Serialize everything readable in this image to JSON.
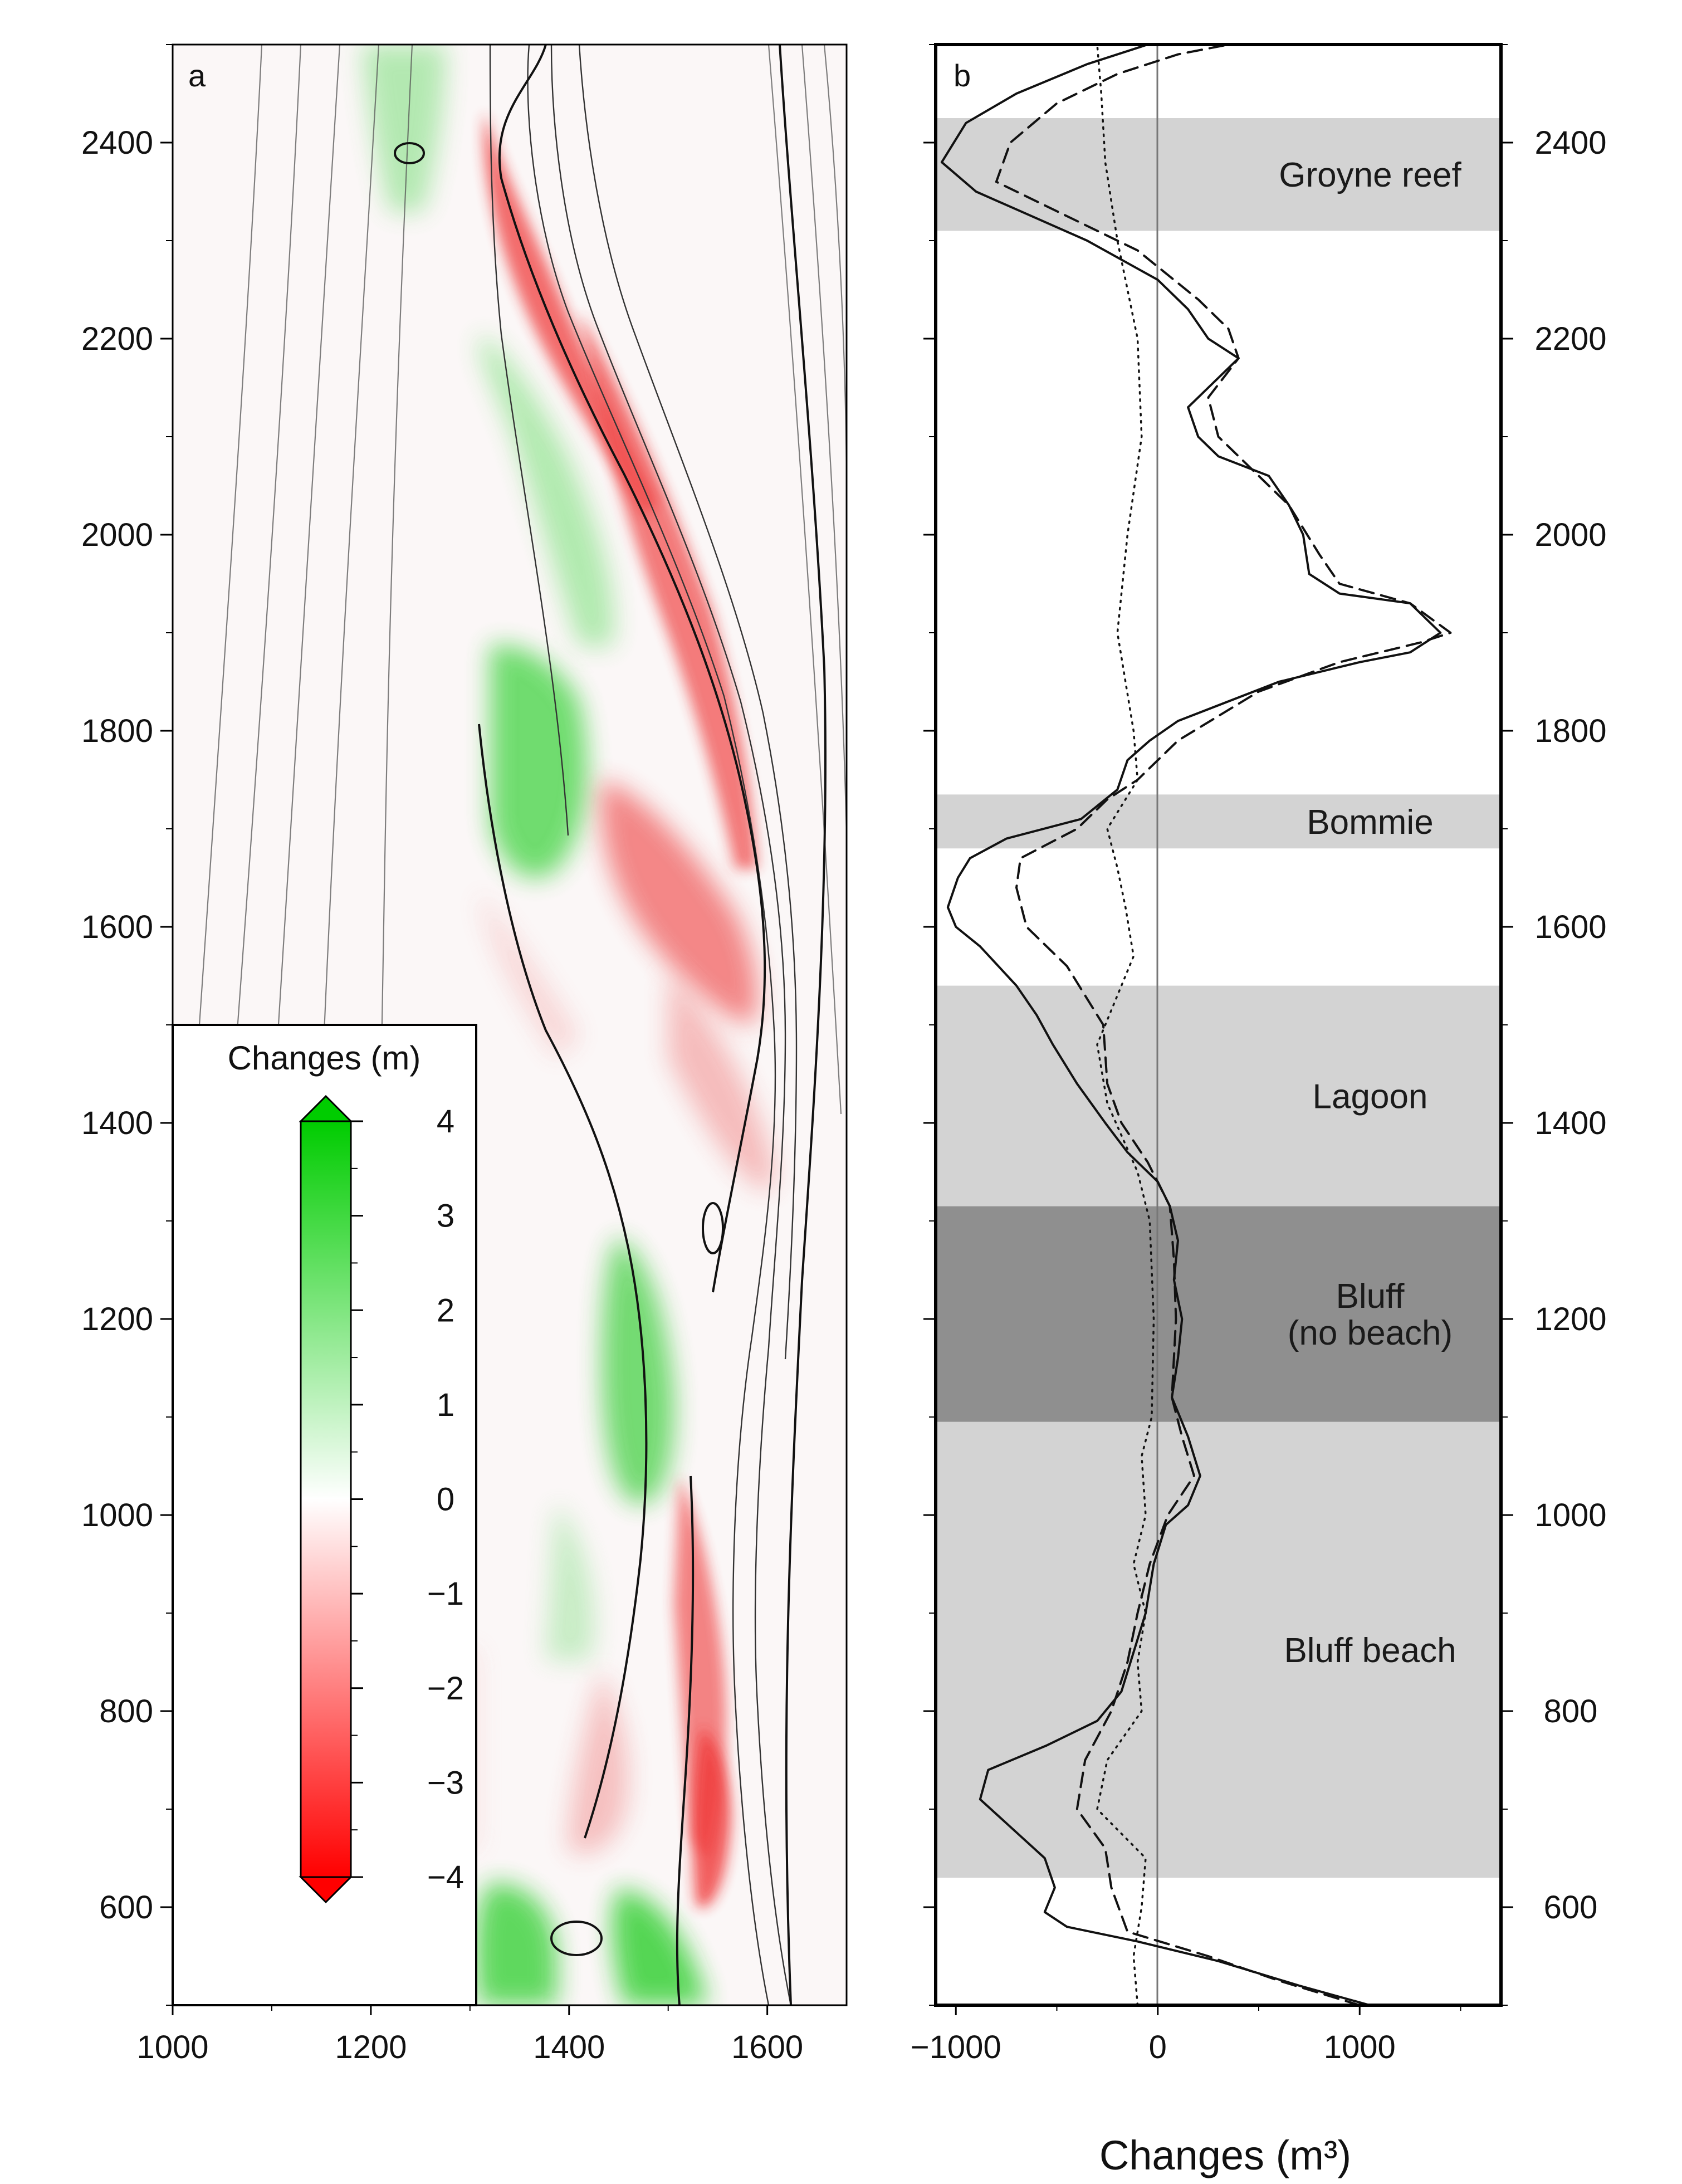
{
  "chart_data": [
    {
      "panel": "a",
      "type": "heatmap",
      "xlim": [
        1000,
        1680
      ],
      "ylim": [
        500,
        2500
      ],
      "x_ticks": [
        "1000",
        "1200",
        "1400",
        "1600"
      ],
      "y_ticks": [
        "600",
        "800",
        "1000",
        "1200",
        "1400",
        "1600",
        "1800",
        "2000",
        "2200",
        "2400"
      ],
      "colorbar": {
        "title": "Changes (m)",
        "range": [
          -4,
          4
        ],
        "ticks": [
          "4",
          "3",
          "2",
          "1",
          "0",
          "−1",
          "−2",
          "−3",
          "−4"
        ],
        "colors": {
          "positive": "#00cc00",
          "zero": "#ffffff",
          "negative": "#ff0000"
        }
      }
    },
    {
      "panel": "b",
      "type": "line",
      "xlabel": "Changes (m³)",
      "xlim": [
        -1100,
        1700
      ],
      "ylim": [
        500,
        2500
      ],
      "x_ticks": [
        "−1000",
        "0",
        "1000"
      ],
      "y_ticks": [
        "600",
        "800",
        "1000",
        "1200",
        "1400",
        "1600",
        "1800",
        "2000",
        "2200",
        "2400"
      ],
      "zones": [
        {
          "label": "Groyne reef",
          "lines": [
            "Groyne reef"
          ],
          "y0": 2310,
          "y1": 2425,
          "shade": "#d3d3d3"
        },
        {
          "label": "Bommie",
          "lines": [
            "Bommie"
          ],
          "y0": 1680,
          "y1": 1735,
          "shade": "#d3d3d3"
        },
        {
          "label": "Lagoon",
          "lines": [
            "Lagoon"
          ],
          "y0": 1315,
          "y1": 1540,
          "shade": "#d3d3d3"
        },
        {
          "label": "Bluff (no beach)",
          "lines": [
            "Bluff",
            "(no beach)"
          ],
          "y0": 1095,
          "y1": 1315,
          "shade": "#8f8f8f"
        },
        {
          "label": "Bluff beach",
          "lines": [
            "Bluff beach"
          ],
          "y0": 630,
          "y1": 1095,
          "shade": "#d3d3d3"
        }
      ],
      "series": [
        {
          "style": "solid",
          "points": [
            [
              1050,
              500
            ],
            [
              700,
              520
            ],
            [
              300,
              545
            ],
            [
              -100,
              565
            ],
            [
              -450,
              580
            ],
            [
              -560,
              595
            ],
            [
              -510,
              620
            ],
            [
              -560,
              650
            ],
            [
              -720,
              680
            ],
            [
              -880,
              710
            ],
            [
              -840,
              740
            ],
            [
              -550,
              765
            ],
            [
              -300,
              790
            ],
            [
              -180,
              820
            ],
            [
              -120,
              860
            ],
            [
              -60,
              900
            ],
            [
              -20,
              950
            ],
            [
              40,
              990
            ],
            [
              150,
              1010
            ],
            [
              210,
              1040
            ],
            [
              150,
              1080
            ],
            [
              70,
              1120
            ],
            [
              100,
              1160
            ],
            [
              120,
              1200
            ],
            [
              80,
              1240
            ],
            [
              100,
              1280
            ],
            [
              60,
              1315
            ],
            [
              0,
              1340
            ],
            [
              -150,
              1370
            ],
            [
              -260,
              1400
            ],
            [
              -400,
              1440
            ],
            [
              -520,
              1480
            ],
            [
              -600,
              1510
            ],
            [
              -700,
              1540
            ],
            [
              -880,
              1580
            ],
            [
              -1000,
              1600
            ],
            [
              -1040,
              1620
            ],
            [
              -990,
              1650
            ],
            [
              -930,
              1670
            ],
            [
              -750,
              1690
            ],
            [
              -380,
              1710
            ],
            [
              -200,
              1740
            ],
            [
              -150,
              1770
            ],
            [
              -40,
              1790
            ],
            [
              100,
              1810
            ],
            [
              600,
              1850
            ],
            [
              1000,
              1870
            ],
            [
              1250,
              1880
            ],
            [
              1400,
              1900
            ],
            [
              1250,
              1930
            ],
            [
              900,
              1940
            ],
            [
              750,
              1960
            ],
            [
              720,
              2000
            ],
            [
              650,
              2030
            ],
            [
              550,
              2060
            ],
            [
              300,
              2080
            ],
            [
              200,
              2100
            ],
            [
              150,
              2130
            ],
            [
              300,
              2160
            ],
            [
              400,
              2180
            ],
            [
              250,
              2200
            ],
            [
              150,
              2230
            ],
            [
              0,
              2260
            ],
            [
              -350,
              2300
            ],
            [
              -680,
              2330
            ],
            [
              -900,
              2350
            ],
            [
              -1070,
              2380
            ],
            [
              -950,
              2420
            ],
            [
              -700,
              2450
            ],
            [
              -350,
              2480
            ],
            [
              -50,
              2500
            ]
          ]
        },
        {
          "style": "dashed",
          "points": [
            [
              1000,
              500
            ],
            [
              600,
              525
            ],
            [
              250,
              550
            ],
            [
              -150,
              575
            ],
            [
              -230,
              620
            ],
            [
              -260,
              660
            ],
            [
              -400,
              700
            ],
            [
              -360,
              750
            ],
            [
              -230,
              800
            ],
            [
              -150,
              850
            ],
            [
              -100,
              900
            ],
            [
              -40,
              950
            ],
            [
              50,
              1000
            ],
            [
              180,
              1040
            ],
            [
              120,
              1080
            ],
            [
              70,
              1120
            ],
            [
              90,
              1200
            ],
            [
              80,
              1260
            ],
            [
              60,
              1315
            ],
            [
              -50,
              1360
            ],
            [
              -180,
              1400
            ],
            [
              -250,
              1440
            ],
            [
              -270,
              1500
            ],
            [
              -450,
              1560
            ],
            [
              -650,
              1600
            ],
            [
              -700,
              1640
            ],
            [
              -680,
              1670
            ],
            [
              -400,
              1700
            ],
            [
              -250,
              1730
            ],
            [
              -100,
              1750
            ],
            [
              100,
              1790
            ],
            [
              500,
              1840
            ],
            [
              900,
              1870
            ],
            [
              1300,
              1890
            ],
            [
              1450,
              1900
            ],
            [
              1250,
              1930
            ],
            [
              900,
              1950
            ],
            [
              800,
              1980
            ],
            [
              650,
              2030
            ],
            [
              450,
              2070
            ],
            [
              300,
              2100
            ],
            [
              250,
              2140
            ],
            [
              400,
              2180
            ],
            [
              350,
              2210
            ],
            [
              200,
              2240
            ],
            [
              -100,
              2290
            ],
            [
              -500,
              2330
            ],
            [
              -800,
              2360
            ],
            [
              -730,
              2400
            ],
            [
              -500,
              2440
            ],
            [
              -200,
              2470
            ],
            [
              100,
              2490
            ],
            [
              350,
              2500
            ]
          ]
        },
        {
          "style": "dotted",
          "points": [
            [
              -100,
              500
            ],
            [
              -120,
              550
            ],
            [
              -80,
              600
            ],
            [
              -60,
              650
            ],
            [
              -300,
              700
            ],
            [
              -250,
              750
            ],
            [
              -80,
              800
            ],
            [
              -100,
              850
            ],
            [
              -60,
              900
            ],
            [
              -120,
              950
            ],
            [
              -60,
              1000
            ],
            [
              -80,
              1060
            ],
            [
              -30,
              1100
            ],
            [
              -20,
              1200
            ],
            [
              -40,
              1300
            ],
            [
              -100,
              1350
            ],
            [
              -250,
              1420
            ],
            [
              -300,
              1480
            ],
            [
              -220,
              1520
            ],
            [
              -120,
              1570
            ],
            [
              -160,
              1620
            ],
            [
              -200,
              1660
            ],
            [
              -250,
              1700
            ],
            [
              -100,
              1750
            ],
            [
              -120,
              1800
            ],
            [
              -200,
              1900
            ],
            [
              -150,
              2000
            ],
            [
              -80,
              2100
            ],
            [
              -100,
              2200
            ],
            [
              -200,
              2300
            ],
            [
              -260,
              2380
            ],
            [
              -280,
              2450
            ],
            [
              -300,
              2500
            ]
          ]
        }
      ]
    }
  ]
}
